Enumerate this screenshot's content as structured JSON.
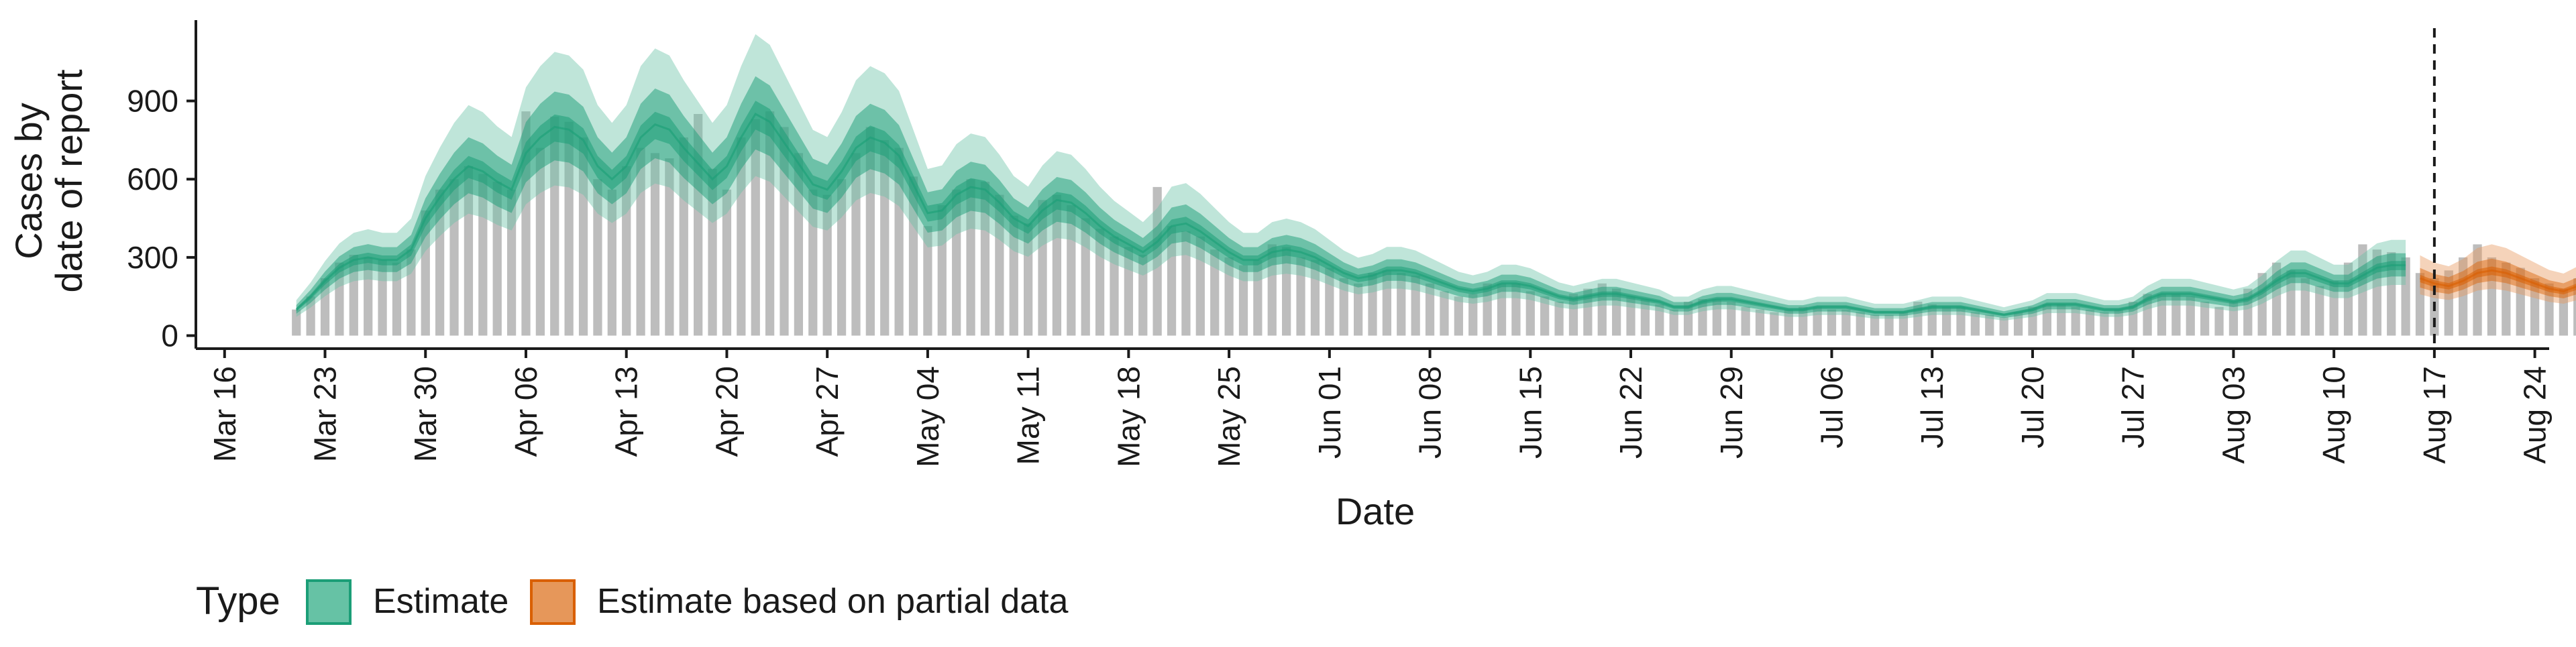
{
  "chart_data": {
    "type": "area",
    "xlabel": "Date",
    "ylabel_lines": [
      "Cases by",
      "date of report"
    ],
    "y_ticks": [
      0,
      300,
      600,
      900
    ],
    "ylim": [
      -50,
      1210
    ],
    "x_range": [
      "2020-03-14",
      "2020-08-25"
    ],
    "x_ticks": [
      {
        "date": "2020-03-16",
        "label": "Mar 16"
      },
      {
        "date": "2020-03-23",
        "label": "Mar 23"
      },
      {
        "date": "2020-03-30",
        "label": "Mar 30"
      },
      {
        "date": "2020-04-06",
        "label": "Apr 06"
      },
      {
        "date": "2020-04-13",
        "label": "Apr 13"
      },
      {
        "date": "2020-04-20",
        "label": "Apr 20"
      },
      {
        "date": "2020-04-27",
        "label": "Apr 27"
      },
      {
        "date": "2020-05-04",
        "label": "May 04"
      },
      {
        "date": "2020-05-11",
        "label": "May 11"
      },
      {
        "date": "2020-05-18",
        "label": "May 18"
      },
      {
        "date": "2020-05-25",
        "label": "May 25"
      },
      {
        "date": "2020-06-01",
        "label": "Jun 01"
      },
      {
        "date": "2020-06-08",
        "label": "Jun 08"
      },
      {
        "date": "2020-06-15",
        "label": "Jun 15"
      },
      {
        "date": "2020-06-22",
        "label": "Jun 22"
      },
      {
        "date": "2020-06-29",
        "label": "Jun 29"
      },
      {
        "date": "2020-07-06",
        "label": "Jul 06"
      },
      {
        "date": "2020-07-13",
        "label": "Jul 13"
      },
      {
        "date": "2020-07-20",
        "label": "Jul 20"
      },
      {
        "date": "2020-07-27",
        "label": "Jul 27"
      },
      {
        "date": "2020-08-03",
        "label": "Aug 03"
      },
      {
        "date": "2020-08-10",
        "label": "Aug 10"
      },
      {
        "date": "2020-08-17",
        "label": "Aug 17"
      },
      {
        "date": "2020-08-24",
        "label": "Aug 24"
      }
    ],
    "vline_date": "2020-08-17",
    "start_date": "2020-03-21",
    "reported_cases": [
      100,
      150,
      220,
      280,
      310,
      300,
      290,
      280,
      330,
      480,
      560,
      600,
      650,
      620,
      590,
      560,
      860,
      720,
      840,
      820,
      760,
      600,
      560,
      650,
      720,
      700,
      680,
      760,
      850,
      640,
      560,
      760,
      830,
      860,
      800,
      700,
      560,
      540,
      600,
      700,
      800,
      750,
      720,
      610,
      420,
      500,
      560,
      600,
      590,
      540,
      460,
      430,
      520,
      540,
      500,
      450,
      410,
      380,
      340,
      310,
      570,
      420,
      400,
      380,
      330,
      300,
      270,
      290,
      350,
      340,
      300,
      290,
      260,
      220,
      200,
      240,
      250,
      240,
      230,
      200,
      170,
      150,
      160,
      200,
      200,
      200,
      170,
      150,
      130,
      160,
      180,
      200,
      180,
      150,
      140,
      120,
      100,
      130,
      140,
      140,
      130,
      110,
      100,
      90,
      100,
      110,
      110,
      100,
      100,
      90,
      80,
      80,
      90,
      130,
      120,
      110,
      110,
      90,
      80,
      70,
      90,
      110,
      120,
      120,
      110,
      100,
      90,
      100,
      130,
      160,
      160,
      160,
      150,
      130,
      110,
      130,
      180,
      240,
      280,
      250,
      220,
      190,
      210,
      280,
      350,
      330,
      320,
      300,
      240,
      220,
      250,
      300,
      350,
      300,
      280,
      260,
      220,
      200,
      180,
      220,
      270
    ],
    "estimate_median": [
      100,
      150,
      210,
      260,
      290,
      300,
      290,
      290,
      330,
      450,
      530,
      600,
      650,
      630,
      590,
      560,
      700,
      760,
      800,
      790,
      750,
      650,
      600,
      650,
      760,
      810,
      790,
      720,
      660,
      600,
      650,
      760,
      850,
      820,
      740,
      660,
      580,
      560,
      630,
      720,
      760,
      740,
      690,
      580,
      470,
      480,
      540,
      570,
      560,
      510,
      450,
      420,
      480,
      520,
      510,
      470,
      420,
      380,
      350,
      320,
      360,
      420,
      430,
      400,
      360,
      320,
      290,
      290,
      320,
      330,
      320,
      300,
      270,
      240,
      220,
      230,
      250,
      250,
      240,
      220,
      200,
      180,
      170,
      180,
      200,
      200,
      190,
      170,
      150,
      140,
      150,
      160,
      160,
      150,
      140,
      130,
      110,
      110,
      130,
      140,
      140,
      130,
      120,
      110,
      100,
      100,
      110,
      110,
      110,
      100,
      90,
      90,
      90,
      100,
      110,
      110,
      110,
      100,
      90,
      80,
      90,
      100,
      120,
      120,
      120,
      110,
      100,
      100,
      110,
      140,
      160,
      160,
      160,
      150,
      140,
      130,
      140,
      170,
      210,
      240,
      240,
      220,
      200,
      200,
      230,
      260,
      270,
      270,
      null,
      null,
      null,
      null,
      null,
      null,
      null,
      null,
      null,
      null,
      null,
      null,
      null
    ],
    "estimate_partial_median": [
      null,
      null,
      null,
      null,
      null,
      null,
      null,
      null,
      null,
      null,
      null,
      null,
      null,
      null,
      null,
      null,
      null,
      null,
      null,
      null,
      null,
      null,
      null,
      null,
      null,
      null,
      null,
      null,
      null,
      null,
      null,
      null,
      null,
      null,
      null,
      null,
      null,
      null,
      null,
      null,
      null,
      null,
      null,
      null,
      null,
      null,
      null,
      null,
      null,
      null,
      null,
      null,
      null,
      null,
      null,
      null,
      null,
      null,
      null,
      null,
      null,
      null,
      null,
      null,
      null,
      null,
      null,
      null,
      null,
      null,
      null,
      null,
      null,
      null,
      null,
      null,
      null,
      null,
      null,
      null,
      null,
      null,
      null,
      null,
      null,
      null,
      null,
      null,
      null,
      null,
      null,
      null,
      null,
      null,
      null,
      null,
      null,
      null,
      null,
      null,
      null,
      null,
      null,
      null,
      null,
      null,
      null,
      null,
      null,
      null,
      null,
      null,
      null,
      null,
      null,
      null,
      null,
      null,
      null,
      null,
      null,
      null,
      null,
      null,
      null,
      null,
      null,
      null,
      null,
      null,
      null,
      null,
      null,
      null,
      null,
      null,
      null,
      null,
      null,
      null,
      null,
      null,
      null,
      null,
      null,
      null,
      null,
      null,
      220,
      200,
      190,
      210,
      240,
      250,
      240,
      220,
      200,
      180,
      170,
      190,
      220
    ],
    "colors": {
      "estimate": "#1B9E77",
      "estimate_fill": "#66C2A5",
      "partial": "#D95F02",
      "partial_fill": "#E6975A",
      "bars": "#BDBDBD"
    },
    "legend": {
      "title": "Type",
      "placement": "bottom",
      "items": [
        {
          "key": "estimate",
          "label": "Estimate"
        },
        {
          "key": "partial",
          "label": "Estimate based on partial data"
        }
      ]
    }
  }
}
